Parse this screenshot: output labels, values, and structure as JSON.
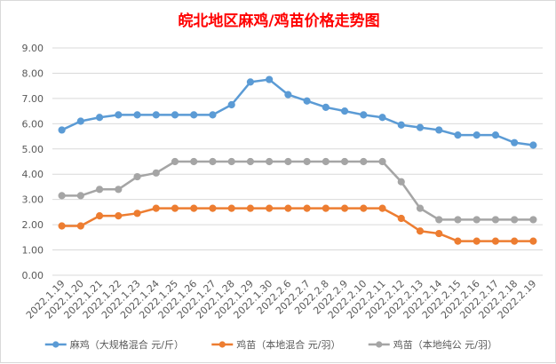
{
  "chart_data": {
    "type": "line",
    "title": "皖北地区麻鸡/鸡苗价格走势图",
    "xlabel": "",
    "ylabel": "",
    "ylim": [
      0,
      9
    ],
    "y_ticks": [
      "0.00",
      "1.00",
      "2.00",
      "3.00",
      "4.00",
      "5.00",
      "6.00",
      "7.00",
      "8.00",
      "9.00"
    ],
    "grid": true,
    "legend_position": "bottom",
    "categories": [
      "2022.1.19",
      "2022.1.20",
      "2022.1.21",
      "2022.1.22",
      "2022.1.23",
      "2022.1.24",
      "2022.1.25",
      "2022.1.26",
      "2022.1.27",
      "2022.1.28",
      "2022.1.29",
      "2022.1.30",
      "2022.2.6",
      "2022.2.7",
      "2022.2.8",
      "2022.2.9",
      "2022.2.10",
      "2022.2.11",
      "2022.2.12",
      "2022.2.13",
      "2022.2.14",
      "2022.2.15",
      "2022.2.16",
      "2022.2.17",
      "2022.2.18",
      "2022.2.19"
    ],
    "series": [
      {
        "name": "麻鸡（大规格混合 元/斤）",
        "color": "#5b9bd5",
        "values": [
          5.75,
          6.1,
          6.25,
          6.35,
          6.35,
          6.35,
          6.35,
          6.35,
          6.35,
          6.75,
          7.65,
          7.75,
          7.15,
          6.9,
          6.65,
          6.5,
          6.35,
          6.25,
          5.95,
          5.85,
          5.75,
          5.55,
          5.55,
          5.55,
          5.25,
          5.15
        ]
      },
      {
        "name": "鸡苗（本地混合 元/羽）",
        "color": "#ed7d31",
        "values": [
          1.95,
          1.95,
          2.35,
          2.35,
          2.45,
          2.65,
          2.65,
          2.65,
          2.65,
          2.65,
          2.65,
          2.65,
          2.65,
          2.65,
          2.65,
          2.65,
          2.65,
          2.65,
          2.25,
          1.75,
          1.65,
          1.35,
          1.35,
          1.35,
          1.35,
          1.35
        ]
      },
      {
        "name": "鸡苗（本地纯公 元/羽）",
        "color": "#a5a5a5",
        "values": [
          3.15,
          3.15,
          3.4,
          3.4,
          3.9,
          4.05,
          4.5,
          4.5,
          4.5,
          4.5,
          4.5,
          4.5,
          4.5,
          4.5,
          4.5,
          4.5,
          4.5,
          4.5,
          3.7,
          2.65,
          2.2,
          2.2,
          2.2,
          2.2,
          2.2,
          2.2
        ]
      }
    ]
  },
  "colors": {
    "title": "#ff0000",
    "grid": "#d9d9d9",
    "axis_text": "#595959"
  }
}
